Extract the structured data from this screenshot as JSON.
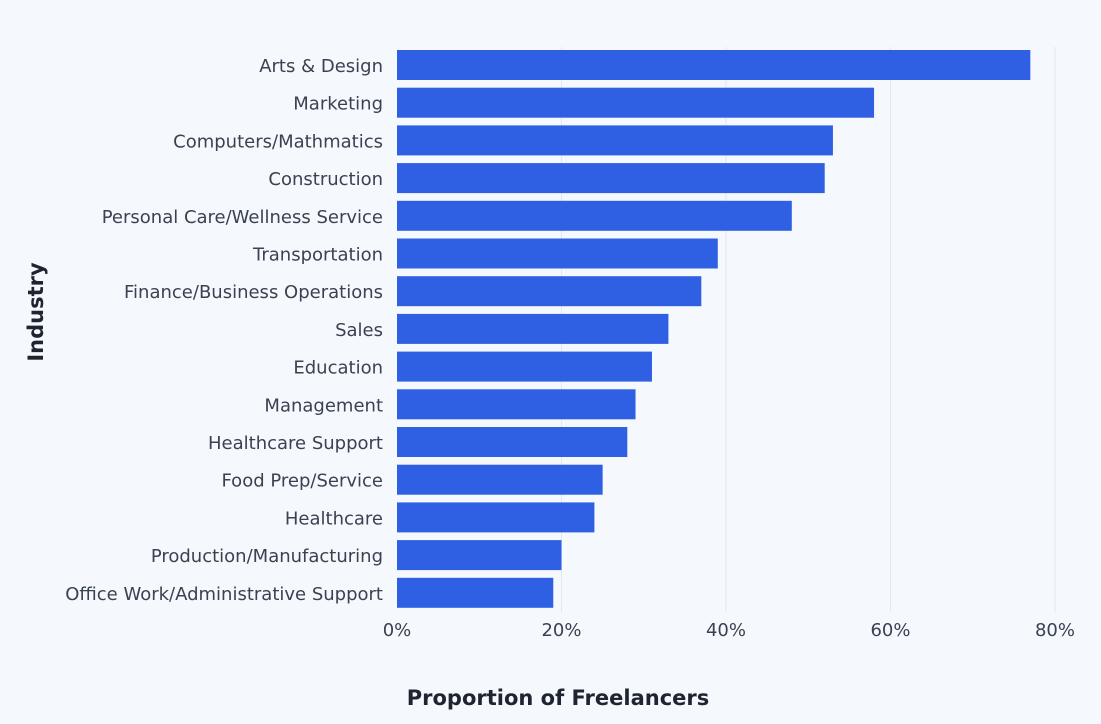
{
  "chart_data": {
    "type": "bar",
    "orientation": "horizontal",
    "xlabel": "Proportion of Freelancers",
    "ylabel": "Industry",
    "xlim": [
      0,
      80
    ],
    "x_ticks": [
      0,
      20,
      40,
      60,
      80
    ],
    "x_tick_labels": [
      "0%",
      "20%",
      "40%",
      "60%",
      "80%"
    ],
    "grid": true,
    "categories": [
      "Arts & Design",
      "Marketing",
      "Computers/Mathmatics",
      "Construction",
      "Personal Care/Wellness Service",
      "Transportation",
      "Finance/Business Operations",
      "Sales",
      "Education",
      "Management",
      "Healthcare Support",
      "Food Prep/Service",
      "Healthcare",
      "Production/Manufacturing",
      "Office Work/Administrative Support"
    ],
    "values": [
      77,
      58,
      53,
      52,
      48,
      39,
      37,
      33,
      31,
      29,
      28,
      25,
      24,
      20,
      19
    ],
    "bar_color": "#2f5fe3"
  }
}
